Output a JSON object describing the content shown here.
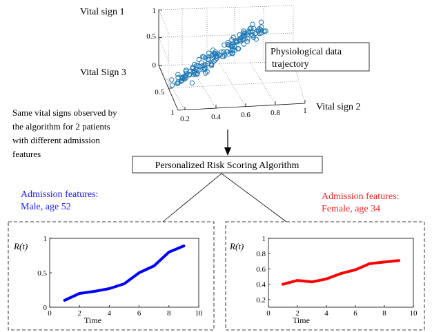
{
  "top_plot": {
    "axis_labels": {
      "z": "Vital sign 1",
      "y": "Vital Sign 3",
      "x": "Vital sign 2"
    },
    "z_ticks": [
      "1",
      "0.5",
      "0"
    ],
    "y_ticks": [
      "0.5",
      "1"
    ],
    "x_ticks": [
      "0.2",
      "0.4",
      "0.6",
      "0.8",
      "1"
    ],
    "callout_line1": "Physiological data",
    "callout_line2": "trajectory"
  },
  "side_note": {
    "lines": [
      "Same vital signs observed by",
      "the algorithm for 2 patients",
      "with different admission",
      "features"
    ]
  },
  "algorithm_box": {
    "label": "Personalized Risk Scoring Algorithm"
  },
  "patient_left": {
    "title_line1": "Admission features:",
    "title_line2": "Male, age 52",
    "color": "#1a1aff"
  },
  "patient_right": {
    "title_line1": "Admission features:",
    "title_line2": "Female, age 34",
    "color": "#ff2020"
  },
  "chart_data": [
    {
      "type": "line",
      "ylabel": "R(t)",
      "xlabel": "Time",
      "xlim": [
        0,
        10
      ],
      "ylim": [
        0,
        1
      ],
      "x_ticks": [
        0,
        2,
        4,
        6,
        8,
        10
      ],
      "y_ticks": [
        0,
        0.5,
        1
      ],
      "x": [
        1,
        2,
        3,
        4,
        5,
        6,
        7,
        8,
        9
      ],
      "y": [
        0.1,
        0.2,
        0.23,
        0.27,
        0.34,
        0.5,
        0.6,
        0.8,
        0.89
      ],
      "color": "#0000ff"
    },
    {
      "type": "line",
      "ylabel": "R(t)",
      "xlabel": "Time",
      "xlim": [
        0,
        10
      ],
      "ylim": [
        0.1,
        1
      ],
      "x_ticks": [
        0,
        2,
        4,
        6,
        8,
        10
      ],
      "y_ticks": [
        0.2,
        0.4,
        0.6,
        0.8,
        1
      ],
      "x": [
        1,
        2,
        3,
        4,
        5,
        6,
        7,
        8,
        9
      ],
      "y": [
        0.4,
        0.45,
        0.43,
        0.47,
        0.54,
        0.59,
        0.67,
        0.69,
        0.71
      ],
      "color": "#ff0000"
    }
  ]
}
